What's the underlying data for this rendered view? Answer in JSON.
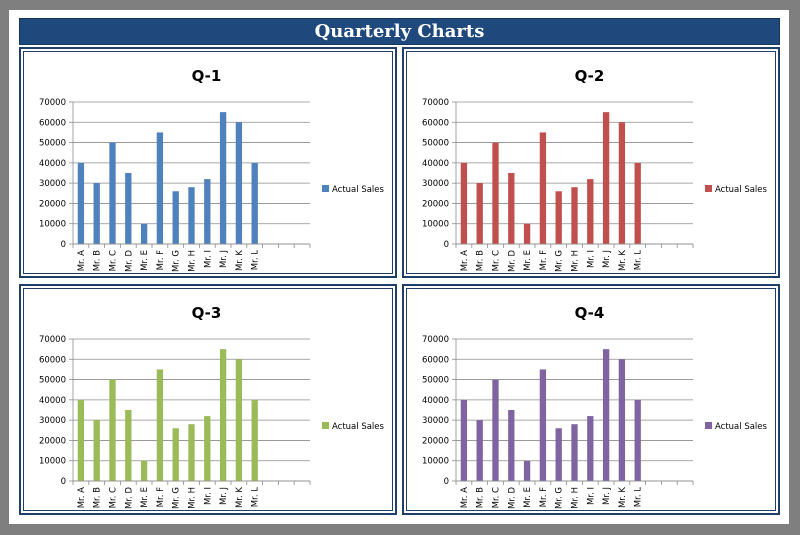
{
  "header": {
    "title": "Quarterly Charts"
  },
  "chart_data": [
    {
      "type": "bar",
      "title": "Q-1",
      "categories": [
        "Mr. A",
        "Mr. B",
        "Mr. C",
        "Mr. D",
        "Mr. E",
        "Mr. F",
        "Mr. G",
        "Mr. H",
        "Mr. I",
        "Mr. J",
        "Mr. K",
        "Mr. L"
      ],
      "series": [
        {
          "name": "Actual Sales",
          "values": [
            40000,
            30000,
            50000,
            35000,
            10000,
            55000,
            26000,
            28000,
            32000,
            65000,
            60000,
            40000
          ],
          "color": "#4f81bd"
        }
      ],
      "yticks": [
        "0",
        "10000",
        "20000",
        "30000",
        "40000",
        "50000",
        "60000",
        "70000"
      ],
      "ylim": [
        0,
        70000
      ],
      "grid": true,
      "legend": "right"
    },
    {
      "type": "bar",
      "title": "Q-2",
      "categories": [
        "Mr. A",
        "Mr. B",
        "Mr. C",
        "Mr. D",
        "Mr. E",
        "Mr. F",
        "Mr. G",
        "Mr. H",
        "Mr. I",
        "Mr. J",
        "Mr. K",
        "Mr. L"
      ],
      "series": [
        {
          "name": "Actual Sales",
          "values": [
            40000,
            30000,
            50000,
            35000,
            10000,
            55000,
            26000,
            28000,
            32000,
            65000,
            60000,
            40000
          ],
          "color": "#c0504d"
        }
      ],
      "yticks": [
        "0",
        "10000",
        "20000",
        "30000",
        "40000",
        "50000",
        "60000",
        "70000"
      ],
      "ylim": [
        0,
        70000
      ],
      "grid": true,
      "legend": "right"
    },
    {
      "type": "bar",
      "title": "Q-3",
      "categories": [
        "Mr. A",
        "Mr. B",
        "Mr. C",
        "Mr. D",
        "Mr. E",
        "Mr. F",
        "Mr. G",
        "Mr. H",
        "Mr. I",
        "Mr. J",
        "Mr. K",
        "Mr. L"
      ],
      "series": [
        {
          "name": "Actual Sales",
          "values": [
            40000,
            30000,
            50000,
            35000,
            10000,
            55000,
            26000,
            28000,
            32000,
            65000,
            60000,
            40000
          ],
          "color": "#9bbb59"
        }
      ],
      "yticks": [
        "0",
        "10000",
        "20000",
        "30000",
        "40000",
        "50000",
        "60000",
        "70000"
      ],
      "ylim": [
        0,
        70000
      ],
      "grid": true,
      "legend": "right"
    },
    {
      "type": "bar",
      "title": "Q-4",
      "categories": [
        "Mr. A",
        "Mr. B",
        "Mr. C",
        "Mr. D",
        "Mr. E",
        "Mr. F",
        "Mr. G",
        "Mr. H",
        "Mr. I",
        "Mr. J",
        "Mr. K",
        "Mr. L"
      ],
      "series": [
        {
          "name": "Actual Sales",
          "values": [
            40000,
            30000,
            50000,
            35000,
            10000,
            55000,
            26000,
            28000,
            32000,
            65000,
            60000,
            40000
          ],
          "color": "#8064a2"
        }
      ],
      "yticks": [
        "0",
        "10000",
        "20000",
        "30000",
        "40000",
        "50000",
        "60000",
        "70000"
      ],
      "ylim": [
        0,
        70000
      ],
      "grid": true,
      "legend": "right"
    }
  ]
}
